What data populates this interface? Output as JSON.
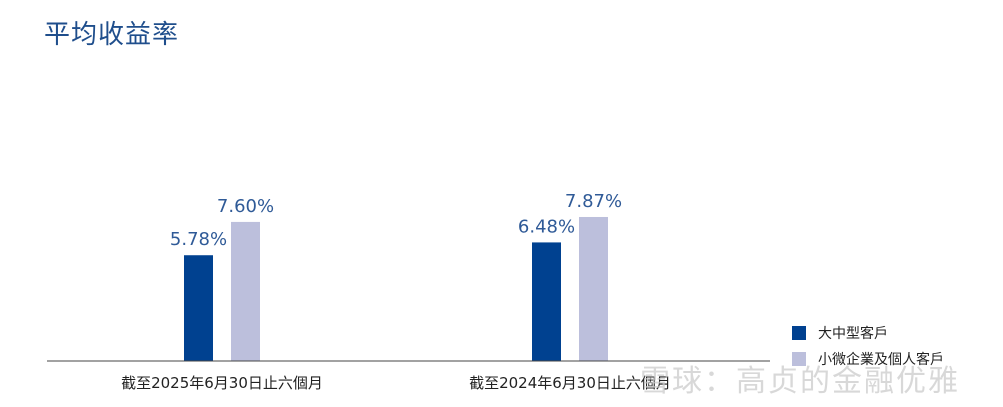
{
  "chart_data": {
    "type": "bar",
    "title": "平均收益率",
    "categories": [
      "截至2025年6月30日止六個月",
      "截至2024年6月30日止六個月"
    ],
    "series": [
      {
        "name": "大中型客戶",
        "values": [
          5.78,
          6.48
        ],
        "labels": [
          "5.78%",
          "6.48%"
        ],
        "color": "#004190"
      },
      {
        "name": "小微企業及個人客戶",
        "values": [
          7.6,
          7.87
        ],
        "labels": [
          "7.60%",
          "7.87%"
        ],
        "color": "#bcbfdc"
      }
    ],
    "legend_position": "bottom-right",
    "grid": false
  },
  "watermark": "雪球：高贞的金融优雅",
  "label_color": "#2f5a97",
  "axis_color": "#444444"
}
